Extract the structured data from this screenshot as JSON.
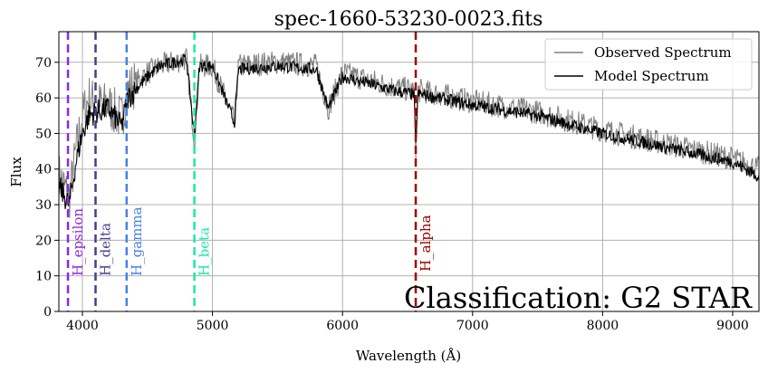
{
  "chart_data": {
    "type": "line",
    "title": "spec-1660-53230-0023.fits",
    "xlabel": "Wavelength (Å)",
    "ylabel": "Flux",
    "xlim": [
      3819,
      9202
    ],
    "ylim": [
      0,
      78.6
    ],
    "xticks": [
      4000,
      5000,
      6000,
      7000,
      8000,
      9000
    ],
    "yticks": [
      0,
      10,
      20,
      30,
      40,
      50,
      60,
      70
    ],
    "grid": true,
    "legend_position": "top-right",
    "series": [
      {
        "name": "Observed Spectrum",
        "color": "#808080",
        "x": [
          3820,
          3900,
          3950,
          4000,
          4050,
          4100,
          4200,
          4300,
          4350,
          4400,
          4500,
          4600,
          4700,
          4800,
          4861,
          4900,
          5000,
          5170,
          5200,
          5500,
          5800,
          5890,
          6000,
          6200,
          6400,
          6550,
          6563,
          6580,
          6600,
          7000,
          7500,
          8000,
          8500,
          9000,
          9200
        ],
        "y": [
          38,
          32,
          45,
          55,
          60,
          58,
          58,
          54,
          62,
          64,
          67,
          69,
          70,
          71,
          48,
          69,
          69,
          53,
          69,
          70,
          69,
          57,
          67,
          65,
          63,
          62,
          46,
          62,
          62,
          59,
          56,
          51,
          47,
          43,
          40
        ]
      },
      {
        "name": "Model Spectrum",
        "color": "#000000",
        "x": [
          3820,
          3900,
          3950,
          4000,
          4050,
          4100,
          4200,
          4300,
          4350,
          4400,
          4500,
          4600,
          4700,
          4800,
          4861,
          4900,
          5000,
          5170,
          5200,
          5500,
          5800,
          5890,
          6000,
          6200,
          6400,
          6550,
          6563,
          6580,
          6600,
          7000,
          7500,
          8000,
          8500,
          9000,
          9200
        ],
        "y": [
          35,
          30,
          42,
          50,
          55,
          56,
          57,
          52,
          60,
          62,
          66,
          69,
          70,
          71,
          49,
          69,
          69,
          53,
          68,
          69,
          68,
          57,
          66,
          64,
          62,
          61,
          46,
          61,
          61,
          58,
          55,
          50,
          46,
          42,
          38
        ]
      }
    ],
    "lines": [
      {
        "label": "H_epsilon",
        "x": 3889,
        "color": "#8a2be2"
      },
      {
        "label": "H_delta",
        "x": 4101,
        "color": "#483d8b"
      },
      {
        "label": "H_gamma",
        "x": 4340,
        "color": "#4682e8"
      },
      {
        "label": "H_beta",
        "x": 4861,
        "color": "#1de9a6"
      },
      {
        "label": "H_alpha",
        "x": 6563,
        "color": "#a00000"
      }
    ],
    "annotation": "Classification: G2 STAR"
  }
}
